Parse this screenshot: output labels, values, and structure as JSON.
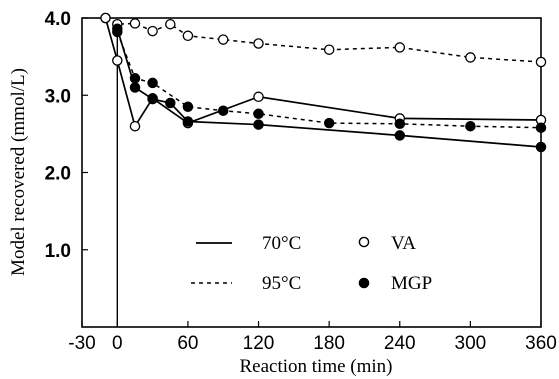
{
  "chart_data": {
    "type": "line",
    "xlabel": "Reaction time (min)",
    "ylabel": "Model recovered (mmol/L)",
    "xlim": [
      -30,
      360
    ],
    "ylim": [
      0,
      4.0
    ],
    "xticks": [
      -30,
      0,
      60,
      120,
      180,
      240,
      300,
      360
    ],
    "x_tick_labels": [
      "-30",
      "0",
      "60",
      "120",
      "180",
      "240",
      "300",
      "360"
    ],
    "yticks": [
      1.0,
      2.0,
      3.0,
      4.0
    ],
    "y_tick_labels": [
      "1.0",
      "2.0",
      "3.0",
      "4.0"
    ],
    "start_marker_x": 0,
    "legend_placement": "bottom-center",
    "legend": {
      "line_70": "70°C",
      "line_95": "95°C",
      "marker_va": "VA",
      "marker_mgp": "MGP"
    },
    "series": [
      {
        "name": "VA 95°C",
        "line": "dashed",
        "marker": "open-circle",
        "x": [
          -10,
          0,
          15,
          30,
          45,
          60,
          90,
          120,
          180,
          240,
          300,
          360
        ],
        "y": [
          4.0,
          3.92,
          3.93,
          3.83,
          3.92,
          3.77,
          3.72,
          3.67,
          3.59,
          3.62,
          3.49,
          3.43
        ]
      },
      {
        "name": "VA 70°C",
        "line": "solid",
        "marker": "open-circle",
        "x": [
          -10,
          0,
          15,
          30,
          60,
          120,
          240,
          360
        ],
        "y": [
          4.0,
          3.45,
          2.6,
          2.96,
          2.64,
          2.98,
          2.7,
          2.68
        ]
      },
      {
        "name": "MGP 95°C",
        "line": "dashed",
        "marker": "filled-circle",
        "x": [
          0,
          15,
          30,
          60,
          90,
          120,
          180,
          240,
          300,
          360
        ],
        "y": [
          3.82,
          3.22,
          3.16,
          2.85,
          2.8,
          2.76,
          2.64,
          2.63,
          2.6,
          2.58
        ]
      },
      {
        "name": "MGP 70°C",
        "line": "solid",
        "marker": "filled-circle",
        "x": [
          0,
          15,
          30,
          45,
          60,
          120,
          240,
          360
        ],
        "y": [
          3.86,
          3.1,
          2.95,
          2.9,
          2.66,
          2.62,
          2.48,
          2.33
        ]
      }
    ]
  }
}
